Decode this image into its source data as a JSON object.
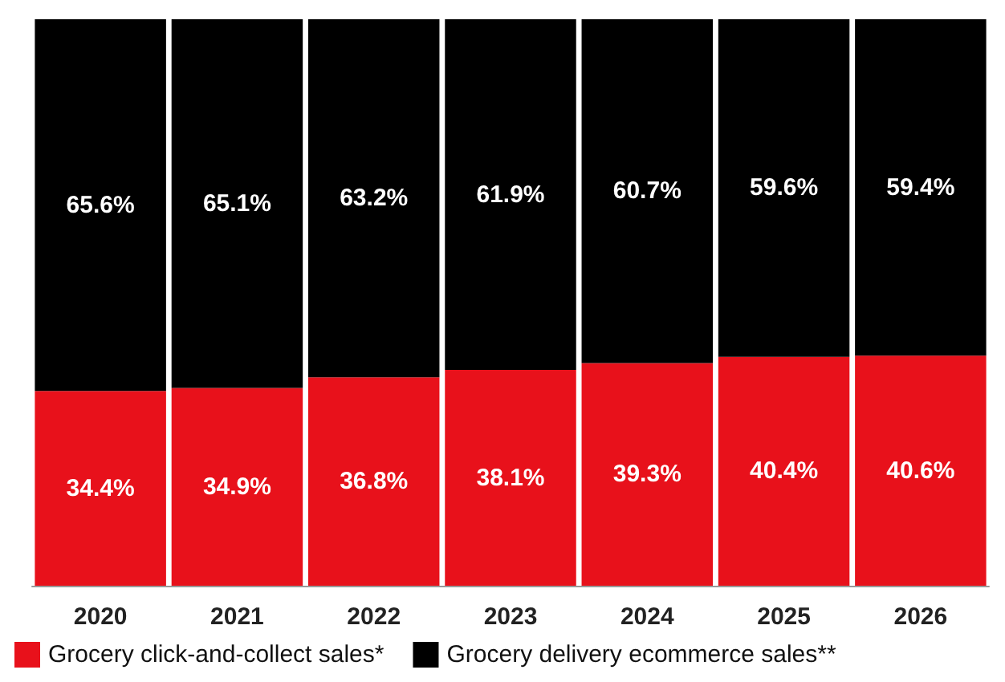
{
  "chart_data": {
    "type": "bar",
    "stacked": true,
    "categories": [
      "2020",
      "2021",
      "2022",
      "2023",
      "2024",
      "2025",
      "2026"
    ],
    "series": [
      {
        "name": "Grocery click-and-collect sales*",
        "color": "#e8111b",
        "values": [
          34.4,
          34.9,
          36.8,
          38.1,
          39.3,
          40.4,
          40.6
        ],
        "value_labels": [
          "34.4%",
          "34.9%",
          "36.8%",
          "38.1%",
          "39.3%",
          "40.4%",
          "40.6%"
        ]
      },
      {
        "name": "Grocery delivery ecommerce sales**",
        "color": "#000000",
        "values": [
          65.6,
          65.1,
          63.2,
          61.9,
          60.7,
          59.6,
          59.4
        ],
        "value_labels": [
          "65.6%",
          "65.1%",
          "63.2%",
          "61.9%",
          "60.7%",
          "59.6%",
          "59.4%"
        ]
      }
    ],
    "legend": "bottom left"
  }
}
